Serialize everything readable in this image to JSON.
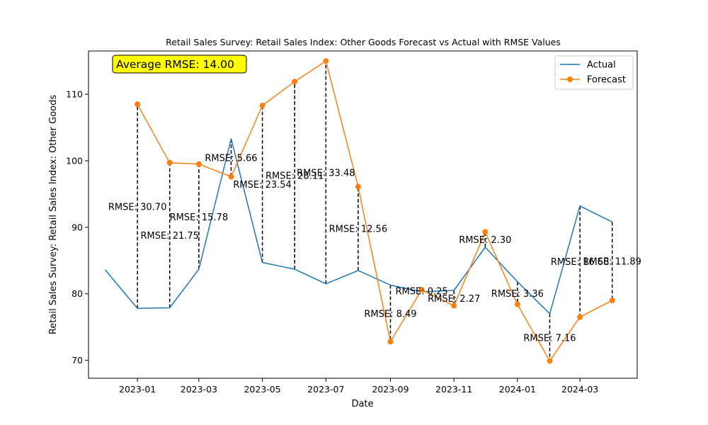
{
  "chart_data": {
    "type": "line",
    "title": "Retail Sales Survey: Retail Sales Index: Other Goods Forecast vs Actual with RMSE Values",
    "xlabel": "Date",
    "ylabel": "Retail Sales Survey: Retail Sales Index: Other Goods",
    "x_ticks": [
      "2023-01",
      "2023-03",
      "2023-05",
      "2023-07",
      "2023-09",
      "2023-11",
      "2024-01",
      "2024-03"
    ],
    "y_ticks": [
      70,
      80,
      90,
      100,
      110
    ],
    "xlim": [
      "2022-11-15",
      "2024-04-25"
    ],
    "ylim": [
      67.3,
      116.5
    ],
    "grid": false,
    "legend_position": "top-right",
    "annotation": "Average RMSE: 14.00",
    "annotation_color": "#ffff00",
    "series": [
      {
        "name": "Actual",
        "color": "#1f77b4",
        "marker": "none",
        "points": [
          [
            "2022-12-01",
            83.6
          ],
          [
            "2023-01-01",
            77.8
          ],
          [
            "2023-02-01",
            77.9
          ],
          [
            "2023-03-01",
            83.7
          ],
          [
            "2023-04-01",
            103.3
          ],
          [
            "2023-05-01",
            84.7
          ],
          [
            "2023-06-01",
            83.7
          ],
          [
            "2023-07-01",
            81.5
          ],
          [
            "2023-08-01",
            83.5
          ],
          [
            "2023-09-01",
            81.3
          ],
          [
            "2023-10-01",
            80.3
          ],
          [
            "2023-11-01",
            80.5
          ],
          [
            "2023-12-01",
            87.0
          ],
          [
            "2024-01-01",
            81.8
          ],
          [
            "2024-02-01",
            77.0
          ],
          [
            "2024-03-01",
            93.2
          ],
          [
            "2024-04-01",
            90.8
          ]
        ]
      },
      {
        "name": "Forecast",
        "color": "#ff7f0e",
        "marker": "circle",
        "points": [
          [
            "2023-01-01",
            108.5
          ],
          [
            "2023-02-01",
            99.7
          ],
          [
            "2023-03-01",
            99.5
          ],
          [
            "2023-04-01",
            97.6
          ],
          [
            "2023-05-01",
            108.3
          ],
          [
            "2023-06-01",
            111.9
          ],
          [
            "2023-07-01",
            115.0
          ],
          [
            "2023-08-01",
            96.1
          ],
          [
            "2023-09-01",
            72.8
          ],
          [
            "2023-10-01",
            80.6
          ],
          [
            "2023-11-01",
            78.2
          ],
          [
            "2023-12-01",
            89.3
          ],
          [
            "2024-01-01",
            78.4
          ],
          [
            "2024-02-01",
            69.9
          ],
          [
            "2024-03-01",
            76.5
          ],
          [
            "2024-04-01",
            79.0
          ]
        ]
      }
    ],
    "rmse_labels": [
      {
        "date": "2023-01-01",
        "text": "RMSE: 30.70"
      },
      {
        "date": "2023-02-01",
        "text": "RMSE: 21.75"
      },
      {
        "date": "2023-03-01",
        "text": "RMSE: 15.78"
      },
      {
        "date": "2023-04-01",
        "text": "RMSE: 5.66"
      },
      {
        "date": "2023-05-01",
        "text": "RMSE: 23.54"
      },
      {
        "date": "2023-06-01",
        "text": "RMSE: 28.11"
      },
      {
        "date": "2023-07-01",
        "text": "RMSE: 33.48"
      },
      {
        "date": "2023-08-01",
        "text": "RMSE: 12.56"
      },
      {
        "date": "2023-09-01",
        "text": "RMSE: 8.49"
      },
      {
        "date": "2023-10-01",
        "text": "RMSE: 0.25"
      },
      {
        "date": "2023-11-01",
        "text": "RMSE: 2.27"
      },
      {
        "date": "2023-12-01",
        "text": "RMSE: 2.30"
      },
      {
        "date": "2024-01-01",
        "text": "RMSE: 3.36"
      },
      {
        "date": "2024-02-01",
        "text": "RMSE: 7.16"
      },
      {
        "date": "2024-03-01",
        "text": "RMSE: 16.68"
      },
      {
        "date": "2024-04-01",
        "text": "RMSE: 11.89"
      }
    ]
  }
}
